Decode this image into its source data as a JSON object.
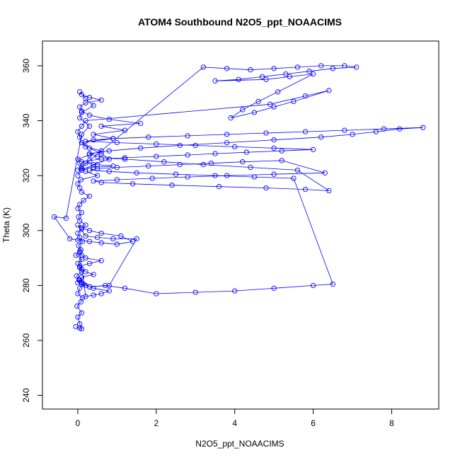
{
  "chart_data": {
    "type": "scatter",
    "title": "ATOM4 Southbound N2O5_ppt_NOAACIMS",
    "xlabel": "N2O5_ppt_NOAACIMS",
    "ylabel": "Theta (K)",
    "xlim": [
      -0.9,
      9.2
    ],
    "ylim": [
      235,
      369
    ],
    "x_ticks": [
      0,
      2,
      4,
      6,
      8
    ],
    "x_tick_labels": [
      "0",
      "2",
      "4",
      "6",
      "8"
    ],
    "y_ticks": [
      240,
      260,
      280,
      300,
      320,
      340,
      360
    ],
    "y_tick_labels": [
      "240",
      "260",
      "280",
      "300",
      "320",
      "340",
      "360"
    ],
    "grid": false,
    "legend": "none",
    "marker": "open-circle",
    "line": "connected",
    "color": "#0000ff",
    "series": [
      {
        "x": [
          0.05,
          -0.05,
          0.1,
          0.05,
          0.0,
          0.1,
          -0.02,
          0.08,
          0.12,
          0.0,
          0.05,
          0.15,
          0.03,
          -0.03,
          0.1,
          0.05,
          0.0,
          0.1,
          -0.05,
          0.05,
          0.08,
          0.02,
          0.12,
          0.05,
          0.0,
          0.1,
          0.2,
          0.05,
          0.02,
          0.1,
          0.0,
          0.05,
          0.15,
          0.3,
          0.1,
          0.05,
          0.0,
          0.08,
          0.5,
          0.2,
          0.1,
          0.05,
          0.0,
          0.3,
          0.6,
          0.2,
          0.1,
          0.9,
          0.4,
          1.2,
          0.6,
          1.6,
          0.8,
          0.3,
          0.1,
          0.05,
          0.2,
          0.6,
          0.3,
          0.1,
          0.05,
          0.2,
          0.4,
          0.1,
          0.05,
          0.3,
          0.1,
          -0.3,
          -0.6,
          -0.2,
          0.0,
          0.3,
          0.6,
          1.0,
          1.4,
          1.1,
          0.6,
          0.3,
          0.1,
          0.0,
          0.2,
          0.5,
          0.9,
          1.5,
          0.8,
          0.3,
          0.1,
          0.0,
          0.05,
          0.1,
          0.4,
          0.2,
          0.1,
          0.05,
          0.3,
          0.6,
          0.2,
          0.1,
          0.05,
          0.2,
          0.4,
          0.6,
          0.8,
          0.4,
          0.2,
          0.1,
          0.05,
          0.3,
          0.7,
          1.2,
          2.0,
          3.0,
          4.0,
          5.0,
          6.0,
          6.5,
          5.5,
          4.5,
          3.5,
          2.5,
          1.5,
          0.8,
          0.3,
          0.5,
          1.0,
          1.8,
          2.6,
          3.4,
          4.2,
          5.2,
          6.3,
          5.0,
          3.8,
          2.8,
          1.9,
          1.0,
          0.4,
          0.6,
          1.4,
          2.4,
          3.6,
          4.8,
          5.8,
          6.4,
          5.6,
          4.4,
          3.2,
          2.2,
          1.2,
          0.5,
          0.3,
          0.8,
          1.6,
          2.6,
          3.8,
          5.0,
          6.2,
          7.0,
          7.6,
          8.2,
          8.8,
          7.8,
          6.8,
          5.8,
          4.8,
          3.8,
          2.8,
          1.8,
          0.9,
          0.4,
          0.2,
          1.0,
          2.0,
          3.0,
          4.0,
          5.0,
          6.0,
          5.2,
          4.3,
          3.5,
          2.8,
          2.0,
          1.2,
          0.6,
          0.3,
          0.1,
          0.2,
          0.5,
          0.9,
          0.4,
          0.1,
          0.0,
          3.2,
          3.8,
          4.4,
          5.0,
          5.6,
          6.2,
          6.8,
          7.1,
          6.5,
          5.9,
          5.3,
          4.7,
          4.1,
          3.5,
          4.8,
          5.4,
          6.0,
          5.1,
          4.6,
          4.2,
          3.9,
          4.5,
          5.0,
          5.5,
          6.4,
          5.8,
          4.9,
          0.2,
          0.1,
          0.0,
          0.05,
          0.1,
          0.3,
          0.6,
          0.8,
          0.4,
          0.1,
          0.0
        ],
        "y": [
          264.5,
          265.0,
          264.2,
          266.0,
          268.5,
          270.0,
          272.5,
          274.0,
          275.5,
          277.0,
          279.0,
          280.5,
          282.0,
          283.5,
          285.0,
          286.5,
          288.0,
          289.5,
          291.0,
          292.5,
          293.0,
          294.5,
          296.0,
          297.5,
          299.0,
          300.5,
          302.0,
          303.5,
          305.0,
          306.5,
          308.0,
          309.5,
          311.0,
          312.5,
          314.0,
          315.5,
          317.0,
          318.5,
          320.0,
          321.5,
          323.0,
          324.5,
          326.0,
          327.5,
          329.0,
          330.5,
          332.0,
          333.5,
          335.0,
          336.5,
          338.0,
          339.0,
          340.5,
          342.0,
          343.5,
          345.0,
          346.5,
          347.5,
          348.5,
          349.5,
          350.5,
          348.0,
          345.5,
          343.0,
          341.0,
          338.0,
          335.0,
          304.5,
          305.0,
          297.0,
          296.5,
          296.0,
          295.5,
          295.0,
          296.0,
          298.0,
          299.0,
          300.0,
          301.0,
          302.0,
          298.0,
          297.5,
          297.0,
          297.0,
          280.0,
          279.5,
          280.5,
          281.0,
          282.0,
          283.0,
          284.0,
          285.0,
          286.0,
          287.0,
          288.0,
          289.0,
          290.0,
          291.0,
          292.0,
          276.0,
          276.5,
          277.0,
          278.0,
          279.0,
          280.0,
          281.0,
          282.0,
          279.5,
          280.0,
          279.0,
          277.0,
          277.5,
          278.0,
          279.0,
          280.0,
          280.5,
          319.0,
          319.5,
          320.0,
          320.5,
          321.0,
          321.5,
          322.0,
          322.5,
          323.0,
          323.5,
          324.0,
          324.5,
          325.0,
          325.5,
          321.0,
          320.5,
          320.0,
          319.5,
          319.0,
          318.5,
          318.0,
          317.5,
          317.0,
          316.5,
          316.0,
          315.5,
          315.0,
          314.5,
          322.0,
          323.0,
          324.0,
          325.0,
          326.0,
          327.0,
          328.0,
          329.0,
          330.0,
          331.0,
          332.0,
          333.0,
          334.0,
          335.0,
          336.0,
          337.0,
          337.5,
          337.0,
          336.5,
          336.0,
          335.5,
          335.0,
          334.5,
          334.0,
          333.5,
          333.0,
          332.5,
          332.0,
          331.5,
          331.0,
          330.5,
          330.0,
          329.5,
          329.0,
          328.5,
          328.0,
          327.5,
          327.0,
          326.5,
          326.0,
          325.5,
          325.0,
          324.5,
          324.0,
          323.5,
          323.0,
          322.5,
          322.0,
          359.5,
          359.0,
          358.5,
          359.0,
          359.5,
          360.0,
          360.0,
          359.5,
          359.0,
          358.0,
          357.0,
          356.0,
          355.0,
          354.5,
          355.0,
          356.0,
          357.0,
          350.5,
          347.0,
          344.0,
          341.0,
          343.0,
          345.0,
          347.0,
          351.0,
          349.0,
          346.0,
          340.0,
          338.0,
          336.0,
          334.0,
          332.0,
          330.0,
          328.0,
          326.0,
          324.0,
          322.0,
          320.0
        ]
      }
    ]
  }
}
